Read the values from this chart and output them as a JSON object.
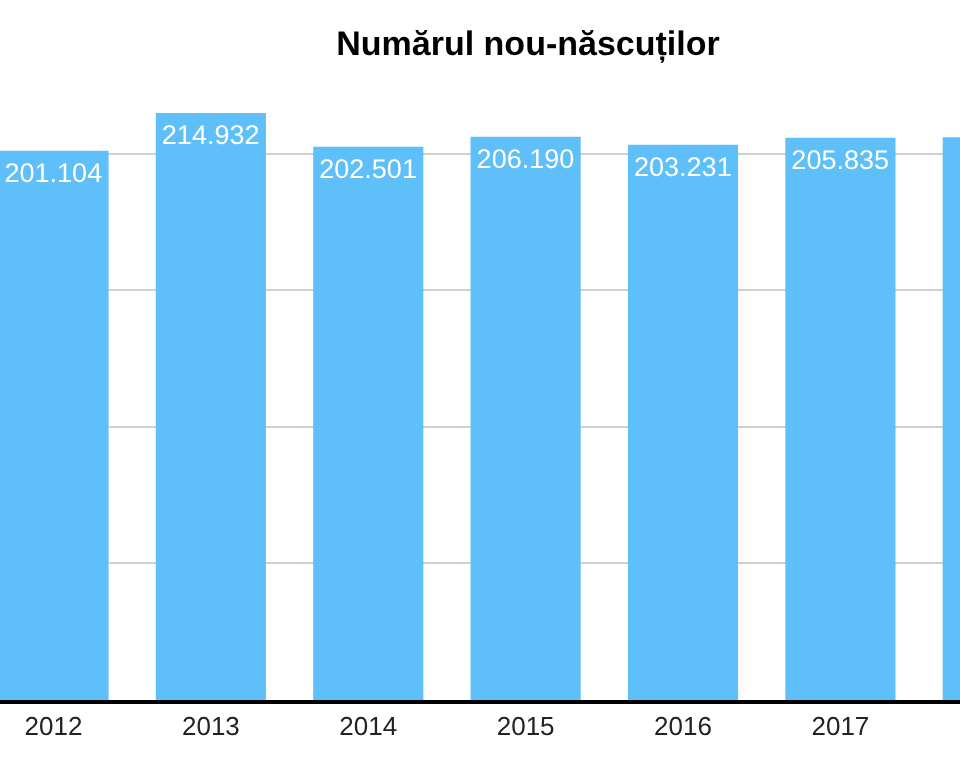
{
  "chart_data": {
    "type": "bar",
    "title": "Numărul nou-născuților",
    "categories": [
      "2012",
      "2013",
      "2014",
      "2015",
      "2016",
      "2017",
      null
    ],
    "values": [
      201104,
      214932,
      202501,
      206190,
      203231,
      205835,
      206000
    ],
    "value_labels": [
      "201.104",
      "214.932",
      "202.501",
      "206.190",
      "203.231",
      "205.835",
      null
    ],
    "color": "#5fbff9",
    "tick_labels": "x",
    "grid": "y"
  }
}
